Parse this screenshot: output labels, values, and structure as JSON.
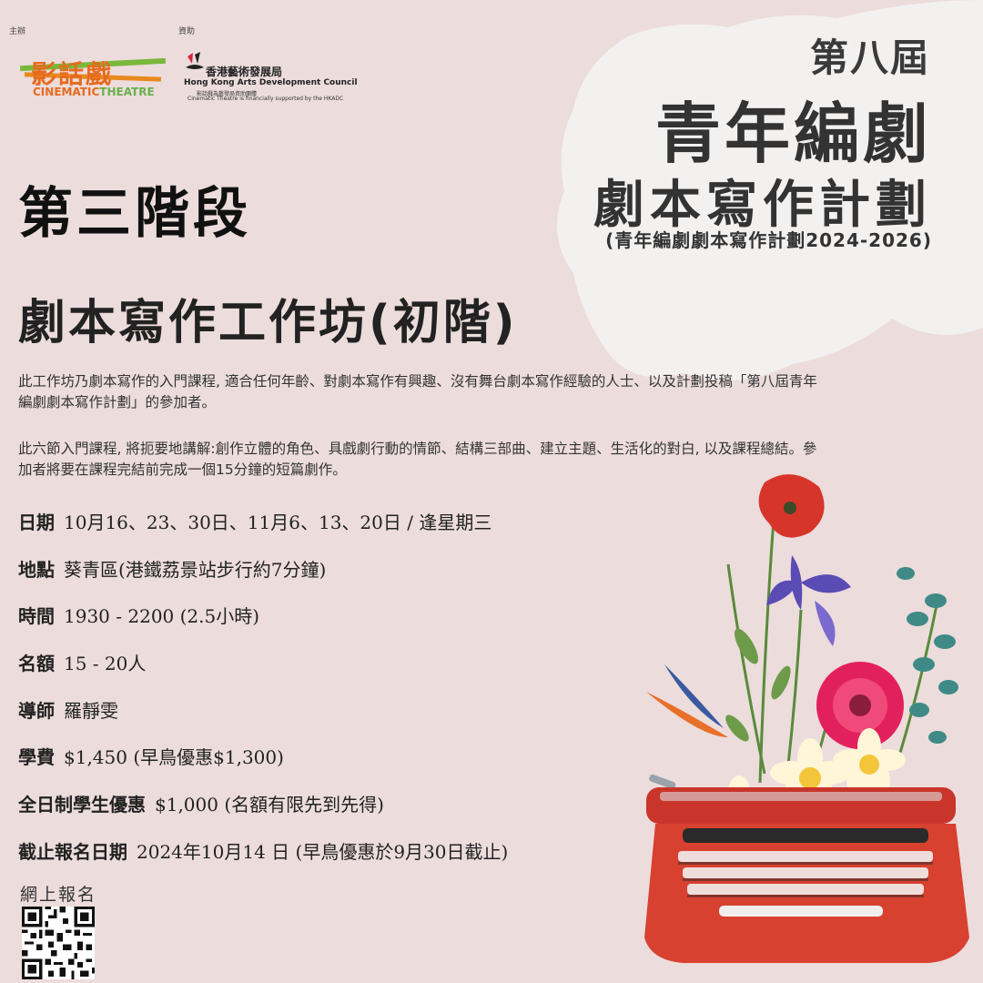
{
  "header": {
    "organizer_label": "主辦",
    "sponsor_label": "資助",
    "organizer_logo": {
      "name_cn": "影話戲",
      "name_en_a": "CINEMATIC",
      "name_en_b": "THEATRE"
    },
    "sponsor_logo": {
      "name_cn": "香港藝術發展局",
      "name_en": "Hong Kong Arts Development Council",
      "sub_cn": "影話戲為藝發局資助團體",
      "sub_en": "Cinematic Theatre is financially supported by the HKADC"
    }
  },
  "title": {
    "edition": "第八屆",
    "main_line1": "青年編劇",
    "main_line2": "劇本寫作計劃",
    "parenthetical": "(青年編劇劇本寫作計劃2024-2026)"
  },
  "stage": "第三階段",
  "workshop": "劇本寫作工作坊(初階)",
  "paragraphs": [
    "此工作坊乃劇本寫作的入門課程, 適合任何年齡、對劇本寫作有興趣、沒有舞台劇本寫作經驗的人士、以及計劃投稿「第八屆青年編劇劇本寫作計劃」的參加者。",
    "此六節入門課程, 將扼要地講解:創作立體的角色、具戲劇行動的情節、結構三部曲、建立主題、生活化的對白, 以及課程總結。參加者將要在課程完結前完成一個15分鐘的短篇劇作。"
  ],
  "info": [
    {
      "label": "日期",
      "value": "10月16、23、30日、11月6、13、20日 / 逢星期三"
    },
    {
      "label": "地點",
      "value": "葵青區(港鐵荔景站步行約7分鐘)"
    },
    {
      "label": "時間",
      "value": "1930 - 2200 (2.5小時)"
    },
    {
      "label": "名額",
      "value": "15 - 20人"
    },
    {
      "label": "導師",
      "value": "羅靜雯"
    },
    {
      "label": "學費",
      "value": "$1,450 (早鳥優惠$1,300)"
    },
    {
      "label": "全日制學生優惠",
      "value": "$1,000 (名額有限先到先得)"
    },
    {
      "label": "截止報名日期",
      "value": "2024年10月14 日 (早鳥優惠於9月30日截止)"
    }
  ],
  "register_label": "網上報名",
  "colors": {
    "background": "#ecdcdc",
    "title_blob": "#f3f1f0",
    "logo_orange": "#e66a1e",
    "logo_green": "#6ab04c",
    "typewriter_red": "#d8412f"
  }
}
